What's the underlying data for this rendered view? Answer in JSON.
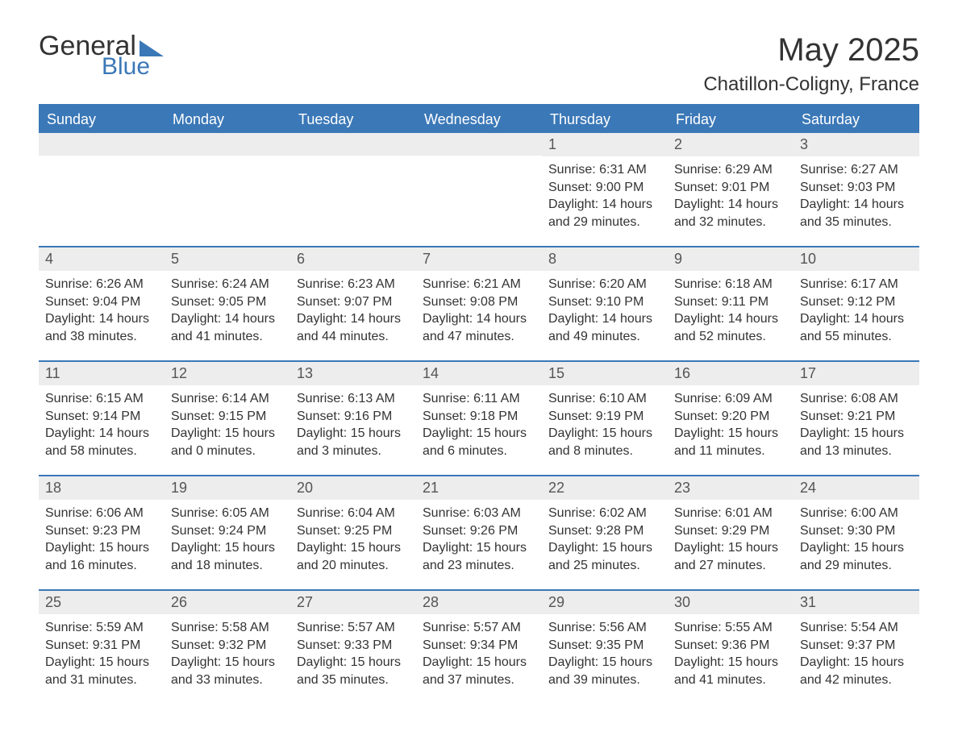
{
  "brand": {
    "word1": "General",
    "word2": "Blue",
    "accent_color": "#3b78b7"
  },
  "title": {
    "month": "May 2025",
    "location": "Chatillon-Coligny, France"
  },
  "calendar": {
    "header_bg": "#3b78b7",
    "header_text_color": "#ffffff",
    "daynum_bg": "#ededed",
    "body_text_color": "#333333",
    "border_color": "#3b78b7",
    "days_of_week": [
      "Sunday",
      "Monday",
      "Tuesday",
      "Wednesday",
      "Thursday",
      "Friday",
      "Saturday"
    ],
    "weeks": [
      [
        {
          "empty": true
        },
        {
          "empty": true
        },
        {
          "empty": true
        },
        {
          "empty": true
        },
        {
          "day": "1",
          "sunrise": "Sunrise: 6:31 AM",
          "sunset": "Sunset: 9:00 PM",
          "daylight1": "Daylight: 14 hours",
          "daylight2": "and 29 minutes."
        },
        {
          "day": "2",
          "sunrise": "Sunrise: 6:29 AM",
          "sunset": "Sunset: 9:01 PM",
          "daylight1": "Daylight: 14 hours",
          "daylight2": "and 32 minutes."
        },
        {
          "day": "3",
          "sunrise": "Sunrise: 6:27 AM",
          "sunset": "Sunset: 9:03 PM",
          "daylight1": "Daylight: 14 hours",
          "daylight2": "and 35 minutes."
        }
      ],
      [
        {
          "day": "4",
          "sunrise": "Sunrise: 6:26 AM",
          "sunset": "Sunset: 9:04 PM",
          "daylight1": "Daylight: 14 hours",
          "daylight2": "and 38 minutes."
        },
        {
          "day": "5",
          "sunrise": "Sunrise: 6:24 AM",
          "sunset": "Sunset: 9:05 PM",
          "daylight1": "Daylight: 14 hours",
          "daylight2": "and 41 minutes."
        },
        {
          "day": "6",
          "sunrise": "Sunrise: 6:23 AM",
          "sunset": "Sunset: 9:07 PM",
          "daylight1": "Daylight: 14 hours",
          "daylight2": "and 44 minutes."
        },
        {
          "day": "7",
          "sunrise": "Sunrise: 6:21 AM",
          "sunset": "Sunset: 9:08 PM",
          "daylight1": "Daylight: 14 hours",
          "daylight2": "and 47 minutes."
        },
        {
          "day": "8",
          "sunrise": "Sunrise: 6:20 AM",
          "sunset": "Sunset: 9:10 PM",
          "daylight1": "Daylight: 14 hours",
          "daylight2": "and 49 minutes."
        },
        {
          "day": "9",
          "sunrise": "Sunrise: 6:18 AM",
          "sunset": "Sunset: 9:11 PM",
          "daylight1": "Daylight: 14 hours",
          "daylight2": "and 52 minutes."
        },
        {
          "day": "10",
          "sunrise": "Sunrise: 6:17 AM",
          "sunset": "Sunset: 9:12 PM",
          "daylight1": "Daylight: 14 hours",
          "daylight2": "and 55 minutes."
        }
      ],
      [
        {
          "day": "11",
          "sunrise": "Sunrise: 6:15 AM",
          "sunset": "Sunset: 9:14 PM",
          "daylight1": "Daylight: 14 hours",
          "daylight2": "and 58 minutes."
        },
        {
          "day": "12",
          "sunrise": "Sunrise: 6:14 AM",
          "sunset": "Sunset: 9:15 PM",
          "daylight1": "Daylight: 15 hours",
          "daylight2": "and 0 minutes."
        },
        {
          "day": "13",
          "sunrise": "Sunrise: 6:13 AM",
          "sunset": "Sunset: 9:16 PM",
          "daylight1": "Daylight: 15 hours",
          "daylight2": "and 3 minutes."
        },
        {
          "day": "14",
          "sunrise": "Sunrise: 6:11 AM",
          "sunset": "Sunset: 9:18 PM",
          "daylight1": "Daylight: 15 hours",
          "daylight2": "and 6 minutes."
        },
        {
          "day": "15",
          "sunrise": "Sunrise: 6:10 AM",
          "sunset": "Sunset: 9:19 PM",
          "daylight1": "Daylight: 15 hours",
          "daylight2": "and 8 minutes."
        },
        {
          "day": "16",
          "sunrise": "Sunrise: 6:09 AM",
          "sunset": "Sunset: 9:20 PM",
          "daylight1": "Daylight: 15 hours",
          "daylight2": "and 11 minutes."
        },
        {
          "day": "17",
          "sunrise": "Sunrise: 6:08 AM",
          "sunset": "Sunset: 9:21 PM",
          "daylight1": "Daylight: 15 hours",
          "daylight2": "and 13 minutes."
        }
      ],
      [
        {
          "day": "18",
          "sunrise": "Sunrise: 6:06 AM",
          "sunset": "Sunset: 9:23 PM",
          "daylight1": "Daylight: 15 hours",
          "daylight2": "and 16 minutes."
        },
        {
          "day": "19",
          "sunrise": "Sunrise: 6:05 AM",
          "sunset": "Sunset: 9:24 PM",
          "daylight1": "Daylight: 15 hours",
          "daylight2": "and 18 minutes."
        },
        {
          "day": "20",
          "sunrise": "Sunrise: 6:04 AM",
          "sunset": "Sunset: 9:25 PM",
          "daylight1": "Daylight: 15 hours",
          "daylight2": "and 20 minutes."
        },
        {
          "day": "21",
          "sunrise": "Sunrise: 6:03 AM",
          "sunset": "Sunset: 9:26 PM",
          "daylight1": "Daylight: 15 hours",
          "daylight2": "and 23 minutes."
        },
        {
          "day": "22",
          "sunrise": "Sunrise: 6:02 AM",
          "sunset": "Sunset: 9:28 PM",
          "daylight1": "Daylight: 15 hours",
          "daylight2": "and 25 minutes."
        },
        {
          "day": "23",
          "sunrise": "Sunrise: 6:01 AM",
          "sunset": "Sunset: 9:29 PM",
          "daylight1": "Daylight: 15 hours",
          "daylight2": "and 27 minutes."
        },
        {
          "day": "24",
          "sunrise": "Sunrise: 6:00 AM",
          "sunset": "Sunset: 9:30 PM",
          "daylight1": "Daylight: 15 hours",
          "daylight2": "and 29 minutes."
        }
      ],
      [
        {
          "day": "25",
          "sunrise": "Sunrise: 5:59 AM",
          "sunset": "Sunset: 9:31 PM",
          "daylight1": "Daylight: 15 hours",
          "daylight2": "and 31 minutes."
        },
        {
          "day": "26",
          "sunrise": "Sunrise: 5:58 AM",
          "sunset": "Sunset: 9:32 PM",
          "daylight1": "Daylight: 15 hours",
          "daylight2": "and 33 minutes."
        },
        {
          "day": "27",
          "sunrise": "Sunrise: 5:57 AM",
          "sunset": "Sunset: 9:33 PM",
          "daylight1": "Daylight: 15 hours",
          "daylight2": "and 35 minutes."
        },
        {
          "day": "28",
          "sunrise": "Sunrise: 5:57 AM",
          "sunset": "Sunset: 9:34 PM",
          "daylight1": "Daylight: 15 hours",
          "daylight2": "and 37 minutes."
        },
        {
          "day": "29",
          "sunrise": "Sunrise: 5:56 AM",
          "sunset": "Sunset: 9:35 PM",
          "daylight1": "Daylight: 15 hours",
          "daylight2": "and 39 minutes."
        },
        {
          "day": "30",
          "sunrise": "Sunrise: 5:55 AM",
          "sunset": "Sunset: 9:36 PM",
          "daylight1": "Daylight: 15 hours",
          "daylight2": "and 41 minutes."
        },
        {
          "day": "31",
          "sunrise": "Sunrise: 5:54 AM",
          "sunset": "Sunset: 9:37 PM",
          "daylight1": "Daylight: 15 hours",
          "daylight2": "and 42 minutes."
        }
      ]
    ]
  }
}
